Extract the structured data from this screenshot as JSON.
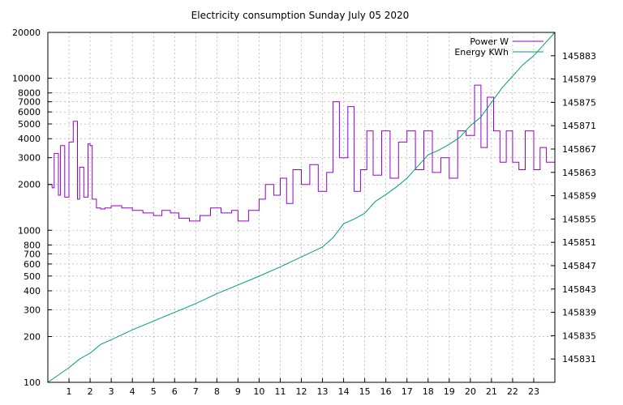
{
  "chart_data": {
    "type": "line",
    "title": "Electricity consumption Sunday July 05 2020",
    "xlabel": "",
    "ylabel": "",
    "x_ticks": [
      "1",
      "2",
      "3",
      "4",
      "5",
      "6",
      "7",
      "8",
      "9",
      "10",
      "11",
      "12",
      "13",
      "14",
      "15",
      "16",
      "17",
      "18",
      "19",
      "20",
      "21",
      "22",
      "23"
    ],
    "xlim": [
      0,
      24
    ],
    "y_scale": "log",
    "ylim": [
      100,
      20000
    ],
    "y_ticks": [
      "100",
      "200",
      "300",
      "400",
      "500",
      "600",
      "700",
      "800",
      "1000",
      "2000",
      "3000",
      "4000",
      "5000",
      "6000",
      "7000",
      "8000",
      "10000",
      "20000"
    ],
    "y2lim": [
      145827,
      145887
    ],
    "y2_ticks": [
      "145831",
      "145835",
      "145839",
      "145843",
      "145847",
      "145851",
      "145855",
      "145859",
      "145863",
      "145867",
      "145871",
      "145875",
      "145879",
      "145883"
    ],
    "grid": true,
    "legend_position": "top-right",
    "colors": {
      "power": "#9400d3",
      "energy": "#009e73"
    },
    "series": [
      {
        "name": "Power W",
        "axis": "y",
        "x": [
          0,
          0.2,
          0.3,
          0.5,
          0.6,
          0.8,
          1.0,
          1.2,
          1.4,
          1.5,
          1.7,
          1.9,
          2.0,
          2.1,
          2.3,
          2.5,
          2.7,
          3.0,
          3.5,
          4.0,
          4.5,
          5.0,
          5.4,
          5.8,
          6.2,
          6.7,
          7.2,
          7.7,
          8.2,
          8.7,
          9.0,
          9.5,
          10.0,
          10.3,
          10.7,
          11.0,
          11.3,
          11.6,
          12.0,
          12.4,
          12.8,
          13.2,
          13.5,
          13.8,
          14.2,
          14.5,
          14.8,
          15.1,
          15.4,
          15.8,
          16.2,
          16.6,
          17.0,
          17.4,
          17.8,
          18.2,
          18.6,
          19.0,
          19.4,
          19.8,
          20.2,
          20.5,
          20.8,
          21.1,
          21.4,
          21.7,
          22.0,
          22.3,
          22.6,
          23.0,
          23.3,
          23.6,
          24.0
        ],
        "y": [
          2000,
          1900,
          3200,
          1700,
          3600,
          1650,
          3800,
          5200,
          1600,
          2600,
          1650,
          3700,
          3600,
          1600,
          1400,
          1380,
          1400,
          1450,
          1400,
          1350,
          1300,
          1250,
          1350,
          1300,
          1200,
          1150,
          1250,
          1400,
          1300,
          1350,
          1150,
          1350,
          1600,
          2000,
          1700,
          2200,
          1500,
          2500,
          2000,
          2700,
          1800,
          2400,
          7000,
          3000,
          6500,
          1800,
          2500,
          4500,
          2300,
          4500,
          2200,
          3800,
          4500,
          2500,
          4500,
          2400,
          3000,
          2200,
          4500,
          4200,
          9000,
          3500,
          7500,
          4500,
          2800,
          4500,
          2800,
          2500,
          4500,
          2500,
          3500,
          2800,
          4500
        ]
      },
      {
        "name": "Energy KWh",
        "axis": "y2",
        "x": [
          0,
          1,
          1.5,
          2,
          2.5,
          3,
          4,
          5,
          6,
          7,
          8,
          9,
          10,
          11,
          12,
          13,
          13.5,
          14,
          14.5,
          15,
          15.5,
          16,
          16.5,
          17,
          17.5,
          18,
          18.5,
          19,
          19.5,
          20,
          20.5,
          21,
          21.5,
          22,
          22.5,
          23,
          23.5,
          24
        ],
        "y": [
          145827,
          145829.5,
          145831,
          145832,
          145833.5,
          145834.3,
          145836,
          145837.5,
          145839,
          145840.5,
          145842.2,
          145843.7,
          145845.2,
          145846.8,
          145848.5,
          145850.2,
          145851.8,
          145854.2,
          145855,
          145856,
          145858,
          145859.2,
          145860.5,
          145862,
          145864,
          145866,
          145866.8,
          145867.8,
          145869,
          145871,
          145872.5,
          145875,
          145877.5,
          145879.5,
          145881.5,
          145883,
          145885,
          145887
        ]
      }
    ]
  }
}
